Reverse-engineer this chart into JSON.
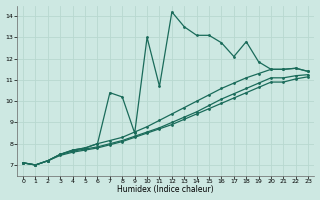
{
  "xlabel": "Humidex (Indice chaleur)",
  "background_color": "#cde8e2",
  "grid_color": "#b8d8d0",
  "line_color": "#1a6b5a",
  "xlim": [
    -0.5,
    23.5
  ],
  "ylim": [
    6.5,
    14.5
  ],
  "yticks": [
    7,
    8,
    9,
    10,
    11,
    12,
    13,
    14
  ],
  "xticks": [
    0,
    1,
    2,
    3,
    4,
    5,
    6,
    7,
    8,
    9,
    10,
    11,
    12,
    13,
    14,
    15,
    16,
    17,
    18,
    19,
    20,
    21,
    22,
    23
  ],
  "lines": [
    {
      "x": [
        0,
        1,
        2,
        3,
        4,
        5,
        6,
        7,
        8,
        9,
        10,
        11,
        12,
        13,
        14,
        15,
        16,
        17,
        18,
        19,
        20,
        21,
        22,
        23
      ],
      "y": [
        7.1,
        7.0,
        7.2,
        7.5,
        7.7,
        7.8,
        8.0,
        10.4,
        10.2,
        8.5,
        13.0,
        10.7,
        14.2,
        13.5,
        13.1,
        13.1,
        12.75,
        12.1,
        12.8,
        11.85,
        11.5,
        11.5,
        11.55,
        11.4
      ]
    },
    {
      "x": [
        0,
        1,
        2,
        3,
        4,
        5,
        6,
        7,
        8,
        9,
        10,
        11,
        12,
        13,
        14,
        15,
        16,
        17,
        18,
        19,
        20,
        21,
        22,
        23
      ],
      "y": [
        7.1,
        7.0,
        7.2,
        7.5,
        7.7,
        7.8,
        8.0,
        8.15,
        8.3,
        8.55,
        8.8,
        9.1,
        9.4,
        9.7,
        10.0,
        10.3,
        10.6,
        10.85,
        11.1,
        11.3,
        11.5,
        11.5,
        11.55,
        11.4
      ]
    },
    {
      "x": [
        0,
        1,
        2,
        3,
        4,
        5,
        6,
        7,
        8,
        9,
        10,
        11,
        12,
        13,
        14,
        15,
        16,
        17,
        18,
        19,
        20,
        21,
        22,
        23
      ],
      "y": [
        7.1,
        7.0,
        7.2,
        7.5,
        7.65,
        7.75,
        7.85,
        8.0,
        8.15,
        8.35,
        8.55,
        8.75,
        9.0,
        9.25,
        9.5,
        9.8,
        10.1,
        10.35,
        10.6,
        10.85,
        11.1,
        11.1,
        11.2,
        11.25
      ]
    },
    {
      "x": [
        0,
        1,
        2,
        3,
        4,
        5,
        6,
        7,
        8,
        9,
        10,
        11,
        12,
        13,
        14,
        15,
        16,
        17,
        18,
        19,
        20,
        21,
        22,
        23
      ],
      "y": [
        7.1,
        7.0,
        7.2,
        7.45,
        7.6,
        7.7,
        7.8,
        7.95,
        8.1,
        8.3,
        8.5,
        8.7,
        8.9,
        9.15,
        9.4,
        9.65,
        9.9,
        10.15,
        10.4,
        10.65,
        10.9,
        10.9,
        11.05,
        11.15
      ]
    }
  ]
}
